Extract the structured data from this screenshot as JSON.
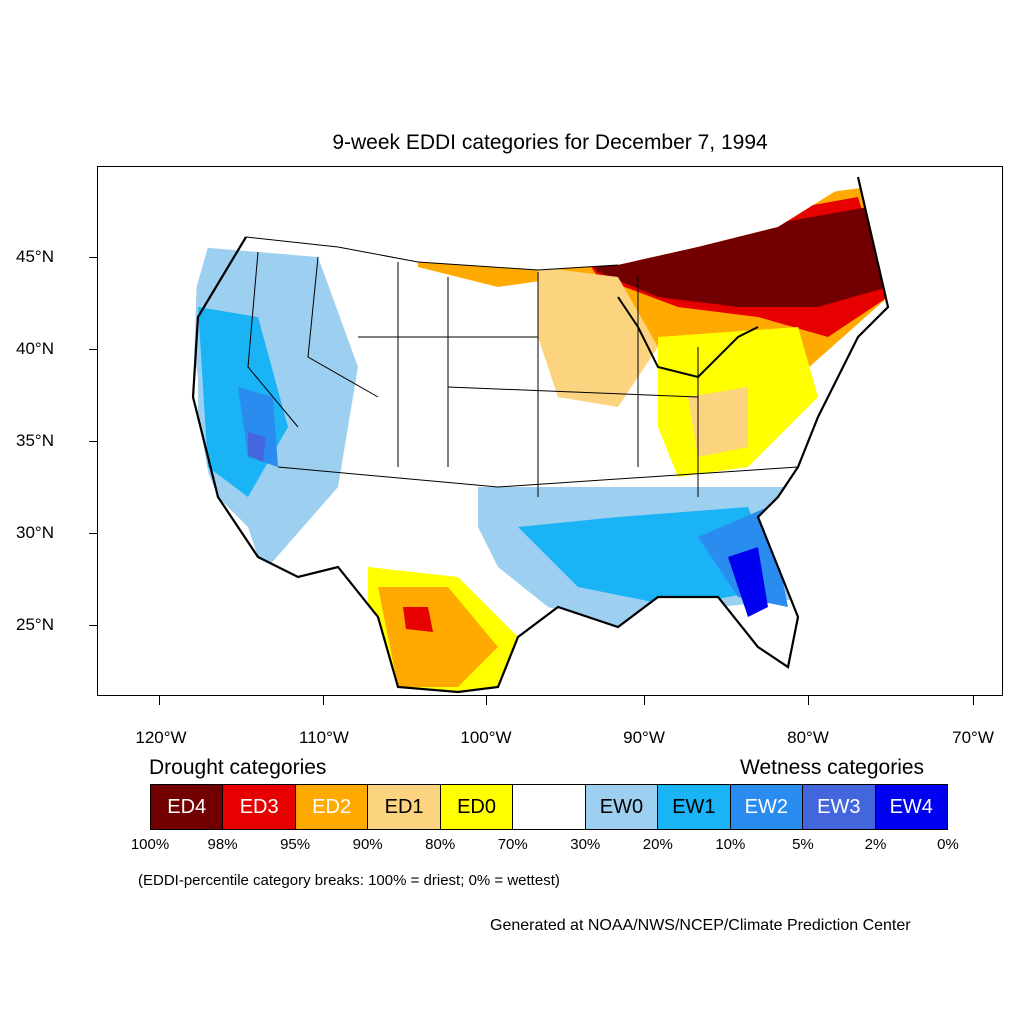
{
  "title": "9-week EDDI categories for December 7, 1994",
  "axes": {
    "lat_labels": [
      "45°N",
      "40°N",
      "35°N",
      "30°N",
      "25°N"
    ],
    "lon_labels": [
      "120°W",
      "110°W",
      "100°W",
      "90°W",
      "80°W",
      "70°W"
    ]
  },
  "legend": {
    "drought_heading": "Drought categories",
    "wetness_heading": "Wetness categories",
    "categories": [
      {
        "label": "ED4",
        "color": "#730000",
        "text_color": "#ffffff"
      },
      {
        "label": "ED3",
        "color": "#e60000",
        "text_color": "#ffffff"
      },
      {
        "label": "ED2",
        "color": "#ffaa00",
        "text_color": "#ffffff"
      },
      {
        "label": "ED1",
        "color": "#fcd37f",
        "text_color": "#000000"
      },
      {
        "label": "ED0",
        "color": "#ffff00",
        "text_color": "#000000"
      },
      {
        "label": "",
        "color": "#ffffff",
        "text_color": "#000000"
      },
      {
        "label": "EW0",
        "color": "#9ccff0",
        "text_color": "#000000"
      },
      {
        "label": "EW1",
        "color": "#1ab3f5",
        "text_color": "#000000"
      },
      {
        "label": "EW2",
        "color": "#2b8cf0",
        "text_color": "#ffffff"
      },
      {
        "label": "EW3",
        "color": "#4466dd",
        "text_color": "#ffffff"
      },
      {
        "label": "EW4",
        "color": "#0000f0",
        "text_color": "#ffffff"
      }
    ],
    "breaks": [
      "100%",
      "98%",
      "95%",
      "90%",
      "80%",
      "70%",
      "30%",
      "20%",
      "10%",
      "5%",
      "2%",
      "0%"
    ]
  },
  "note": "(EDDI-percentile category breaks: 100% = driest; 0% = wettest)",
  "credit": "Generated at NOAA/NWS/NCEP/Climate Prediction Center"
}
